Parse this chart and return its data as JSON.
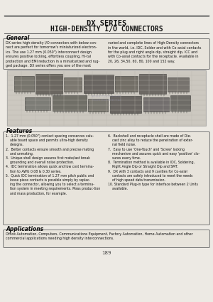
{
  "title_line1": "DX SERIES",
  "title_line2": "HIGH-DENSITY I/O CONNECTORS",
  "bg_color": "#edeae4",
  "general_title": "General",
  "general_text_left": "DX series high-density I/O connectors with below con-\nnect are perfect for tomorrow's miniaturized electron-\nics. The use 1.27 mm (0.050\") interconnect design\nensures positive locking, effortless coupling, Hi-tal\nprotection and EMI reduction in a miniaturized and rug-\nged package. DX series offers you one of the most",
  "general_text_right": "varied and complete lines of High-Density connectors\nin the world, i.e. IDC, Solder and with Co-axial contacts\nfor the plug and right angle dip, straight dip, ICC and\nwith Co-axial contacts for the receptacle. Available in\n20, 26, 34,50, 60, 80, 100 and 152 way.",
  "features_title": "Features",
  "feat_left": "1.  1.27 mm (0.050\") contact spacing conserves valu-\n    able board space and permits ultra-high density\n    designs.\n2.  Better contacts ensure smooth and precise mating\n    and unmating.\n3.  Unique shell design assures first mate/last break\n    grounding and overall noise protection.\n4.  IDC termination allows quick and low cost termina-\n    tion to AWG 0.08 & 0.30 series.\n5.  Quick IDC termination of 1.27 mm pitch public and\n    loose piece contacts is possible simply by replac-\n    ing the connector, allowing you to select a termina-\n    tion system in meeting requirements. Mass produc-tion\n    and mass production, for example.",
  "feat_right": "6.  Backshell and receptacle shell are made of Die-\n    cast zinc alloy to reduce the penetration of exter-\n    nal field noise.\n7.  Easy to use 'One-Touch' and 'Screw' locking\n    mechanism and assures quick and easy 'positive' clo-\n    sures every time.\n8.  Termination method is available in IDC, Soldering,\n    Right Angle Dip or Straight Dip and SMT.\n9.  DX with 3 contacts and 9 cavities for Co-axial\n    contacts are safely introduced to meet the needs\n    of high speed data transmission.\n10. Standard Plug-in type for interface between 2 Units\n    available.",
  "applications_title": "Applications",
  "applications_text": "Office Automation, Computers, Communications Equipment, Factory Automation, Home Automation and other\ncommercial applications needing high density interconnections.",
  "page_number": "189"
}
